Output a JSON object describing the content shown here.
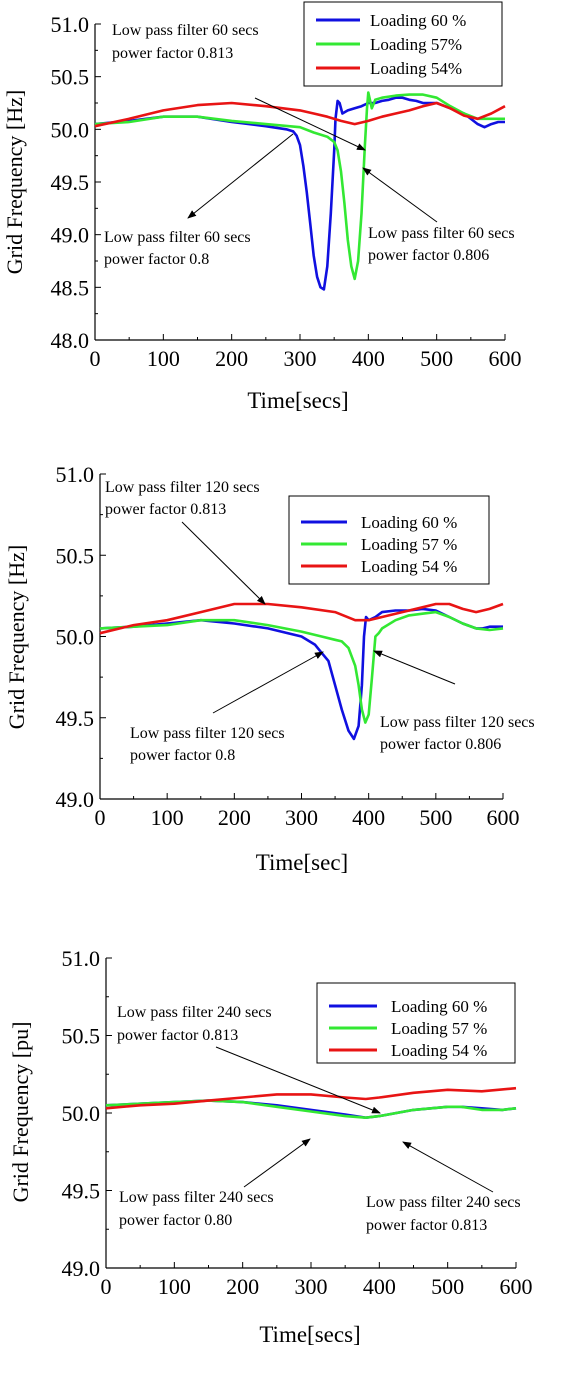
{
  "chart_data": [
    {
      "type": "line",
      "title": "",
      "xlabel": "Time[secs]",
      "ylabel": "Grid Frequency [Hz]",
      "xlim": [
        0,
        600
      ],
      "ylim": [
        48.0,
        51.0
      ],
      "xticks": [
        "0",
        "100",
        "200",
        "300",
        "400",
        "500",
        "600"
      ],
      "yticks": [
        "48.0",
        "48.5",
        "49.0",
        "49.5",
        "50.0",
        "50.5",
        "51.0"
      ],
      "legend_position": "top-right",
      "series": [
        {
          "name": "Loading 60 %",
          "color": "#1010e0",
          "x": [
            0,
            50,
            100,
            150,
            200,
            250,
            280,
            290,
            295,
            300,
            305,
            310,
            315,
            320,
            325,
            330,
            335,
            340,
            345,
            350,
            352,
            355,
            358,
            362,
            370,
            380,
            390,
            400,
            410,
            420,
            430,
            440,
            450,
            460,
            470,
            480,
            490,
            500,
            520,
            540,
            560,
            570,
            580,
            590,
            600
          ],
          "y": [
            50.05,
            50.08,
            50.12,
            50.12,
            50.07,
            50.03,
            50.0,
            49.98,
            49.94,
            49.85,
            49.65,
            49.4,
            49.1,
            48.8,
            48.6,
            48.5,
            48.48,
            48.7,
            49.2,
            49.8,
            50.1,
            50.27,
            50.25,
            50.15,
            50.18,
            50.2,
            50.22,
            50.25,
            50.25,
            50.27,
            50.28,
            50.3,
            50.3,
            50.28,
            50.27,
            50.25,
            50.25,
            50.25,
            50.2,
            50.15,
            50.05,
            50.02,
            50.05,
            50.07,
            50.07
          ]
        },
        {
          "name": "Loading 57%",
          "color": "#33e833",
          "x": [
            0,
            50,
            100,
            150,
            200,
            250,
            300,
            320,
            340,
            350,
            355,
            360,
            365,
            370,
            375,
            380,
            385,
            390,
            395,
            398,
            400,
            405,
            410,
            420,
            440,
            460,
            480,
            500,
            520,
            540,
            560,
            580,
            600
          ],
          "y": [
            50.05,
            50.07,
            50.12,
            50.12,
            50.08,
            50.05,
            50.02,
            49.97,
            49.93,
            49.88,
            49.8,
            49.6,
            49.3,
            48.95,
            48.7,
            48.58,
            48.75,
            49.2,
            49.85,
            50.2,
            50.35,
            50.2,
            50.28,
            50.3,
            50.32,
            50.33,
            50.33,
            50.3,
            50.22,
            50.15,
            50.1,
            50.1,
            50.1
          ]
        },
        {
          "name": "Loading 54%",
          "color": "#e81414",
          "x": [
            0,
            50,
            100,
            150,
            200,
            250,
            300,
            320,
            340,
            360,
            380,
            400,
            420,
            440,
            460,
            480,
            500,
            520,
            540,
            560,
            580,
            600
          ],
          "y": [
            50.03,
            50.1,
            50.18,
            50.23,
            50.25,
            50.22,
            50.18,
            50.15,
            50.12,
            50.08,
            50.05,
            50.08,
            50.12,
            50.15,
            50.18,
            50.22,
            50.25,
            50.2,
            50.13,
            50.1,
            50.15,
            50.22
          ]
        }
      ],
      "annotations": [
        {
          "text": [
            "Low pass filter 60 secs",
            "power factor 0.813"
          ]
        },
        {
          "text": [
            "Low pass filter 60 secs",
            "power factor 0.8"
          ]
        },
        {
          "text": [
            "Low pass filter 60 secs",
            "power factor 0.806"
          ]
        }
      ]
    },
    {
      "type": "line",
      "title": "",
      "xlabel": "Time[sec]",
      "ylabel": "Grid Frequency [Hz]",
      "xlim": [
        0,
        600
      ],
      "ylim": [
        49.0,
        51.0
      ],
      "xticks": [
        "0",
        "100",
        "200",
        "300",
        "400",
        "500",
        "600"
      ],
      "yticks": [
        "49.0",
        "49.5",
        "50.0",
        "50.5",
        "51.0"
      ],
      "legend_position": "top-right",
      "series": [
        {
          "name": "Loading 60 %",
          "color": "#1010e0",
          "x": [
            0,
            50,
            100,
            150,
            200,
            250,
            300,
            320,
            330,
            340,
            350,
            360,
            370,
            378,
            385,
            390,
            393,
            396,
            400,
            410,
            420,
            440,
            460,
            480,
            500,
            520,
            540,
            560,
            570,
            580,
            600
          ],
          "y": [
            50.05,
            50.06,
            50.08,
            50.1,
            50.08,
            50.05,
            50.0,
            49.95,
            49.9,
            49.85,
            49.7,
            49.55,
            49.42,
            49.37,
            49.45,
            49.7,
            50.0,
            50.12,
            50.1,
            50.12,
            50.15,
            50.16,
            50.16,
            50.17,
            50.16,
            50.12,
            50.08,
            50.05,
            50.05,
            50.06,
            50.06
          ]
        },
        {
          "name": "Loading 57 %",
          "color": "#33e833",
          "x": [
            0,
            50,
            100,
            150,
            200,
            250,
            300,
            330,
            350,
            360,
            370,
            380,
            385,
            390,
            395,
            400,
            405,
            410,
            415,
            420,
            440,
            460,
            480,
            500,
            520,
            540,
            560,
            580,
            600
          ],
          "y": [
            50.05,
            50.06,
            50.07,
            50.1,
            50.1,
            50.07,
            50.03,
            50.0,
            49.98,
            49.97,
            49.93,
            49.82,
            49.7,
            49.55,
            49.47,
            49.52,
            49.75,
            50.0,
            50.02,
            50.05,
            50.1,
            50.13,
            50.14,
            50.15,
            50.12,
            50.08,
            50.05,
            50.04,
            50.05
          ]
        },
        {
          "name": "Loading 54 %",
          "color": "#e81414",
          "x": [
            0,
            50,
            100,
            150,
            200,
            250,
            300,
            350,
            380,
            400,
            420,
            450,
            480,
            500,
            520,
            540,
            560,
            580,
            600
          ],
          "y": [
            50.02,
            50.07,
            50.1,
            50.15,
            50.2,
            50.2,
            50.18,
            50.15,
            50.1,
            50.1,
            50.12,
            50.15,
            50.18,
            50.2,
            50.2,
            50.17,
            50.15,
            50.17,
            50.2
          ]
        }
      ],
      "annotations": [
        {
          "text": [
            "Low pass filter 120 secs",
            "power factor 0.813"
          ]
        },
        {
          "text": [
            "Low pass filter 120 secs",
            "power factor 0.8"
          ]
        },
        {
          "text": [
            "Low pass filter 120 secs",
            "power factor 0.806"
          ]
        }
      ]
    },
    {
      "type": "line",
      "title": "",
      "xlabel": "Time[secs]",
      "ylabel": "Grid Frequency [pu]",
      "xlim": [
        0,
        600
      ],
      "ylim": [
        49.0,
        51.0
      ],
      "xticks": [
        "0",
        "100",
        "200",
        "300",
        "400",
        "500",
        "600"
      ],
      "yticks": [
        "49.0",
        "49.5",
        "50.0",
        "50.5",
        "51.0"
      ],
      "legend_position": "top-right",
      "series": [
        {
          "name": "Loading 60 %",
          "color": "#1010e0",
          "x": [
            0,
            50,
            100,
            150,
            200,
            250,
            300,
            350,
            380,
            400,
            450,
            500,
            520,
            550,
            580,
            600
          ],
          "y": [
            50.05,
            50.06,
            50.07,
            50.08,
            50.07,
            50.05,
            50.02,
            49.99,
            49.97,
            49.98,
            50.02,
            50.04,
            50.04,
            50.03,
            50.02,
            50.03
          ]
        },
        {
          "name": "Loading 57 %",
          "color": "#33e833",
          "x": [
            0,
            50,
            100,
            150,
            200,
            250,
            300,
            350,
            380,
            400,
            450,
            500,
            520,
            550,
            580,
            600
          ],
          "y": [
            50.05,
            50.06,
            50.07,
            50.08,
            50.07,
            50.04,
            50.01,
            49.98,
            49.97,
            49.98,
            50.02,
            50.04,
            50.04,
            50.02,
            50.02,
            50.03
          ]
        },
        {
          "name": "Loading 54 %",
          "color": "#e81414",
          "x": [
            0,
            50,
            100,
            150,
            200,
            250,
            300,
            350,
            380,
            400,
            450,
            500,
            550,
            600
          ],
          "y": [
            50.03,
            50.05,
            50.06,
            50.08,
            50.1,
            50.12,
            50.12,
            50.1,
            50.09,
            50.1,
            50.13,
            50.15,
            50.14,
            50.16
          ]
        }
      ],
      "annotations": [
        {
          "text": [
            "Low pass filter 240 secs",
            "power factor 0.813"
          ]
        },
        {
          "text": [
            "Low pass filter 240 secs",
            "power factor 0.80"
          ]
        },
        {
          "text": [
            "Low pass filter 240 secs",
            "power factor 0.813"
          ]
        }
      ]
    }
  ]
}
